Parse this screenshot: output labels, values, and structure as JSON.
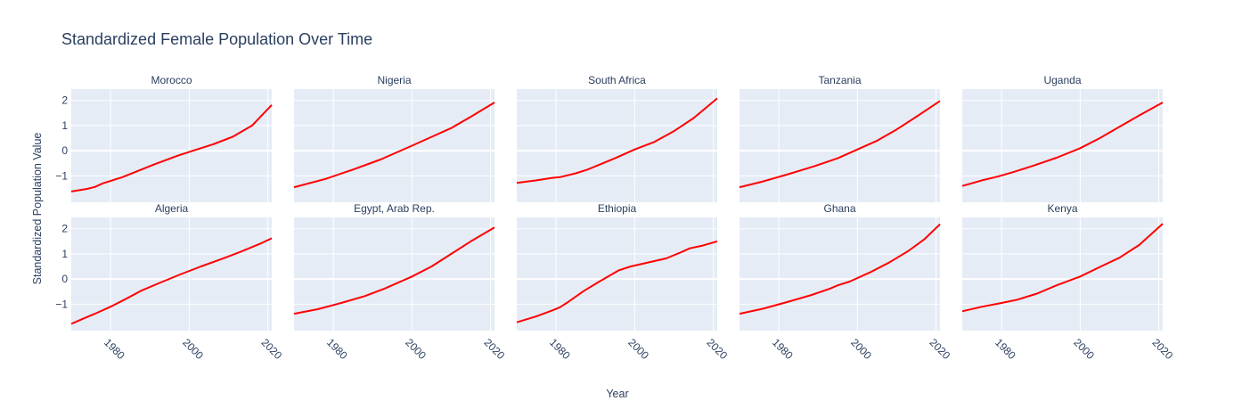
{
  "chart_data": {
    "type": "line",
    "title": "Standardized Female Population Over Time",
    "xlabel": "Year",
    "ylabel": "Standardized Population Value",
    "xlim": [
      1970,
      2021
    ],
    "ylim": [
      -2.05,
      2.45
    ],
    "x_ticks": [
      "1980",
      "2000",
      "2020"
    ],
    "y_ticks": [
      "−1",
      "0",
      "1",
      "2"
    ],
    "y_tick_values": [
      -1,
      0,
      1,
      2
    ],
    "x_tick_values": [
      1980,
      2000,
      2020
    ],
    "line_color": "#ff0000",
    "plot_bg": "#e5ecf6",
    "grid": true,
    "panels": [
      {
        "name": "Morocco",
        "points": [
          [
            1970,
            -1.62
          ],
          [
            1974,
            -1.52
          ],
          [
            1976,
            -1.44
          ],
          [
            1978,
            -1.3
          ],
          [
            1983,
            -1.05
          ],
          [
            1991,
            -0.55
          ],
          [
            1997,
            -0.2
          ],
          [
            2001,
            0.0
          ],
          [
            2006,
            0.25
          ],
          [
            2011,
            0.55
          ],
          [
            2016,
            1.0
          ],
          [
            2021,
            1.82
          ]
        ]
      },
      {
        "name": "Nigeria",
        "points": [
          [
            1970,
            -1.45
          ],
          [
            1978,
            -1.12
          ],
          [
            1985,
            -0.75
          ],
          [
            1992,
            -0.35
          ],
          [
            2000,
            0.2
          ],
          [
            2005,
            0.55
          ],
          [
            2010,
            0.9
          ],
          [
            2015,
            1.35
          ],
          [
            2021,
            1.92
          ]
        ]
      },
      {
        "name": "South Africa",
        "points": [
          [
            1970,
            -1.28
          ],
          [
            1975,
            -1.18
          ],
          [
            1979,
            -1.08
          ],
          [
            1981,
            -1.05
          ],
          [
            1985,
            -0.9
          ],
          [
            1988,
            -0.75
          ],
          [
            1995,
            -0.3
          ],
          [
            2000,
            0.05
          ],
          [
            2005,
            0.35
          ],
          [
            2010,
            0.78
          ],
          [
            2015,
            1.3
          ],
          [
            2021,
            2.08
          ]
        ]
      },
      {
        "name": "Tanzania",
        "points": [
          [
            1970,
            -1.45
          ],
          [
            1976,
            -1.22
          ],
          [
            1982,
            -0.95
          ],
          [
            1989,
            -0.62
          ],
          [
            1995,
            -0.3
          ],
          [
            2000,
            0.05
          ],
          [
            2005,
            0.4
          ],
          [
            2010,
            0.85
          ],
          [
            2015,
            1.35
          ],
          [
            2021,
            1.98
          ]
        ]
      },
      {
        "name": "Uganda",
        "points": [
          [
            1970,
            -1.4
          ],
          [
            1975,
            -1.18
          ],
          [
            1979,
            -1.03
          ],
          [
            1983,
            -0.85
          ],
          [
            1988,
            -0.6
          ],
          [
            1994,
            -0.28
          ],
          [
            2000,
            0.1
          ],
          [
            2005,
            0.5
          ],
          [
            2010,
            0.95
          ],
          [
            2015,
            1.4
          ],
          [
            2021,
            1.92
          ]
        ]
      },
      {
        "name": "Algeria",
        "points": [
          [
            1970,
            -1.78
          ],
          [
            1973,
            -1.58
          ],
          [
            1976,
            -1.38
          ],
          [
            1980,
            -1.1
          ],
          [
            1984,
            -0.78
          ],
          [
            1988,
            -0.45
          ],
          [
            1993,
            -0.12
          ],
          [
            1998,
            0.2
          ],
          [
            2003,
            0.5
          ],
          [
            2008,
            0.78
          ],
          [
            2013,
            1.08
          ],
          [
            2018,
            1.4
          ],
          [
            2021,
            1.62
          ]
        ]
      },
      {
        "name": "Egypt, Arab Rep.",
        "points": [
          [
            1970,
            -1.38
          ],
          [
            1976,
            -1.2
          ],
          [
            1982,
            -0.95
          ],
          [
            1988,
            -0.68
          ],
          [
            1993,
            -0.38
          ],
          [
            2000,
            0.1
          ],
          [
            2005,
            0.5
          ],
          [
            2010,
            1.0
          ],
          [
            2015,
            1.5
          ],
          [
            2021,
            2.05
          ]
        ]
      },
      {
        "name": "Ethiopia",
        "points": [
          [
            1970,
            -1.72
          ],
          [
            1975,
            -1.48
          ],
          [
            1979,
            -1.25
          ],
          [
            1981,
            -1.12
          ],
          [
            1983,
            -0.92
          ],
          [
            1987,
            -0.48
          ],
          [
            1991,
            -0.1
          ],
          [
            1996,
            0.35
          ],
          [
            1999,
            0.5
          ],
          [
            2004,
            0.68
          ],
          [
            2008,
            0.82
          ],
          [
            2012,
            1.08
          ],
          [
            2014,
            1.22
          ],
          [
            2017,
            1.32
          ],
          [
            2021,
            1.5
          ]
        ]
      },
      {
        "name": "Ghana",
        "points": [
          [
            1970,
            -1.38
          ],
          [
            1976,
            -1.18
          ],
          [
            1982,
            -0.92
          ],
          [
            1988,
            -0.65
          ],
          [
            1993,
            -0.38
          ],
          [
            1995,
            -0.25
          ],
          [
            1998,
            -0.1
          ],
          [
            2003,
            0.25
          ],
          [
            2008,
            0.65
          ],
          [
            2013,
            1.12
          ],
          [
            2017,
            1.58
          ],
          [
            2021,
            2.18
          ]
        ]
      },
      {
        "name": "Kenya",
        "points": [
          [
            1970,
            -1.28
          ],
          [
            1975,
            -1.1
          ],
          [
            1980,
            -0.95
          ],
          [
            1984,
            -0.82
          ],
          [
            1989,
            -0.58
          ],
          [
            1994,
            -0.25
          ],
          [
            2000,
            0.1
          ],
          [
            2005,
            0.48
          ],
          [
            2010,
            0.85
          ],
          [
            2015,
            1.35
          ],
          [
            2021,
            2.2
          ]
        ]
      }
    ]
  }
}
